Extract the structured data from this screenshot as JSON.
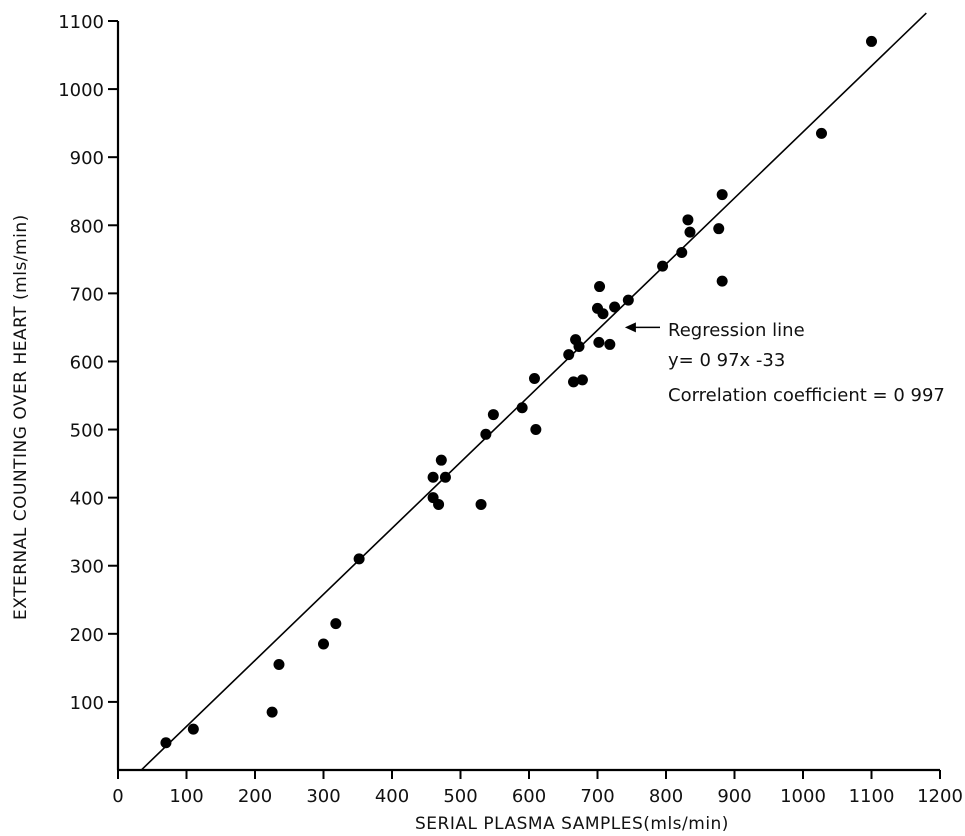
{
  "chart_data": {
    "type": "scatter",
    "xlabel": "SERIAL PLASMA SAMPLES(mls/min)",
    "ylabel": "EXTERNAL COUNTING OVER HEART (mls/min)",
    "xlim": [
      0,
      1200
    ],
    "ylim": [
      0,
      1100
    ],
    "xticks": [
      0,
      100,
      200,
      300,
      400,
      500,
      600,
      700,
      800,
      900,
      1000,
      1100,
      1200
    ],
    "yticks": [
      100,
      200,
      300,
      400,
      500,
      600,
      700,
      800,
      900,
      1000,
      1100
    ],
    "grid": false,
    "marker_color": "#000000",
    "points": [
      {
        "x": 70,
        "y": 40
      },
      {
        "x": 110,
        "y": 60
      },
      {
        "x": 225,
        "y": 85
      },
      {
        "x": 235,
        "y": 155
      },
      {
        "x": 300,
        "y": 185
      },
      {
        "x": 318,
        "y": 215
      },
      {
        "x": 352,
        "y": 310
      },
      {
        "x": 460,
        "y": 400
      },
      {
        "x": 460,
        "y": 430
      },
      {
        "x": 468,
        "y": 390
      },
      {
        "x": 472,
        "y": 455
      },
      {
        "x": 478,
        "y": 430
      },
      {
        "x": 530,
        "y": 390
      },
      {
        "x": 537,
        "y": 493
      },
      {
        "x": 548,
        "y": 522
      },
      {
        "x": 590,
        "y": 532
      },
      {
        "x": 608,
        "y": 575
      },
      {
        "x": 610,
        "y": 500
      },
      {
        "x": 658,
        "y": 610
      },
      {
        "x": 665,
        "y": 570
      },
      {
        "x": 668,
        "y": 632
      },
      {
        "x": 673,
        "y": 622
      },
      {
        "x": 678,
        "y": 573
      },
      {
        "x": 700,
        "y": 678
      },
      {
        "x": 702,
        "y": 628
      },
      {
        "x": 703,
        "y": 710
      },
      {
        "x": 708,
        "y": 670
      },
      {
        "x": 718,
        "y": 625
      },
      {
        "x": 725,
        "y": 680
      },
      {
        "x": 745,
        "y": 690
      },
      {
        "x": 795,
        "y": 740
      },
      {
        "x": 823,
        "y": 760
      },
      {
        "x": 832,
        "y": 808
      },
      {
        "x": 835,
        "y": 790
      },
      {
        "x": 877,
        "y": 795
      },
      {
        "x": 882,
        "y": 845
      },
      {
        "x": 882,
        "y": 718
      },
      {
        "x": 1027,
        "y": 935
      },
      {
        "x": 1100,
        "y": 1070
      }
    ],
    "regression": {
      "slope": 0.97,
      "intercept": -33,
      "x_range": [
        34,
        1180
      ]
    },
    "annotation": {
      "lines": [
        "Regression line",
        "y= 0 97x -33",
        "Correlation coefficient = 0 997"
      ],
      "arrow_target": {
        "x": 740,
        "y": 650
      }
    }
  }
}
